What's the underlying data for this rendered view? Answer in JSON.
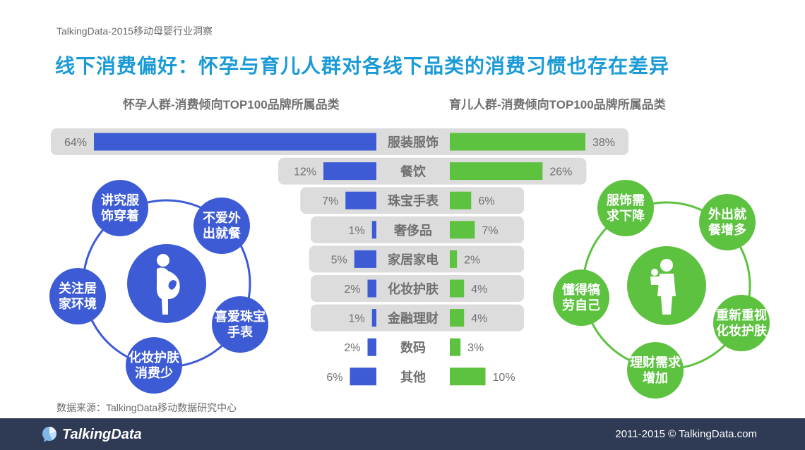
{
  "header": {
    "top_note": "TalkingData-2015移动母婴行业洞察",
    "title": "线下消费偏好：怀孕与育儿人群对各线下品类的消费习惯也存在差异"
  },
  "chart_data": {
    "type": "bar",
    "title": "",
    "categories": [
      "服装服饰",
      "餐饮",
      "珠宝手表",
      "奢侈品",
      "家居家电",
      "化妆护肤",
      "金融理财",
      "数码",
      "其他"
    ],
    "series": [
      {
        "name": "怀孕人群-消费倾向TOP100品牌所属品类",
        "values": [
          64,
          12,
          7,
          1,
          5,
          2,
          1,
          2,
          6
        ],
        "labels": [
          "64%",
          "12%",
          "7%",
          "1%",
          "5%",
          "2%",
          "1%",
          "2%",
          "6%"
        ],
        "color": "#3d5bd4"
      },
      {
        "name": "育儿人群-消费倾向TOP100品牌所属品类",
        "values": [
          38,
          26,
          6,
          7,
          2,
          4,
          4,
          3,
          10
        ],
        "labels": [
          "38%",
          "26%",
          "6%",
          "7%",
          "2%",
          "4%",
          "4%",
          "3%",
          "10%"
        ],
        "color": "#5dc240"
      }
    ],
    "orientation": "horizontal-butterfly",
    "xlim": [
      0,
      64
    ]
  },
  "left_cluster": {
    "color": "#3d5bd4",
    "center_icon": "pregnant-woman-icon",
    "nodes": [
      "讲究服饰穿着",
      "不爱外出就餐",
      "喜爱珠宝手表",
      "化妆护肤消费少",
      "关注居家环境"
    ],
    "node_lines": [
      [
        "讲究服",
        "饰穿着"
      ],
      [
        "不爱外",
        "出就餐"
      ],
      [
        "喜爱珠宝",
        "手表"
      ],
      [
        "化妆护肤",
        "消费少"
      ],
      [
        "关注居",
        "家环境"
      ]
    ]
  },
  "right_cluster": {
    "color": "#5dc240",
    "center_icon": "mother-child-icon",
    "nodes": [
      "服饰需求下降",
      "外出就餐增多",
      "重新重视化妆护肤",
      "理财需求增加",
      "懂得犒劳自己"
    ],
    "node_lines": [
      [
        "服饰需",
        "求下降"
      ],
      [
        "外出就",
        "餐增多"
      ],
      [
        "重新重视",
        "化妆护肤"
      ],
      [
        "理财需求",
        "增加"
      ],
      [
        "懂得犒",
        "劳自己"
      ]
    ]
  },
  "source": "数据来源：TalkingData移动数据研究中心",
  "footer": {
    "logo_text": "TalkingData",
    "copyright": "2011-2015 © TalkingData.com",
    "logo_icon": "chat-bubble-logo-icon"
  }
}
